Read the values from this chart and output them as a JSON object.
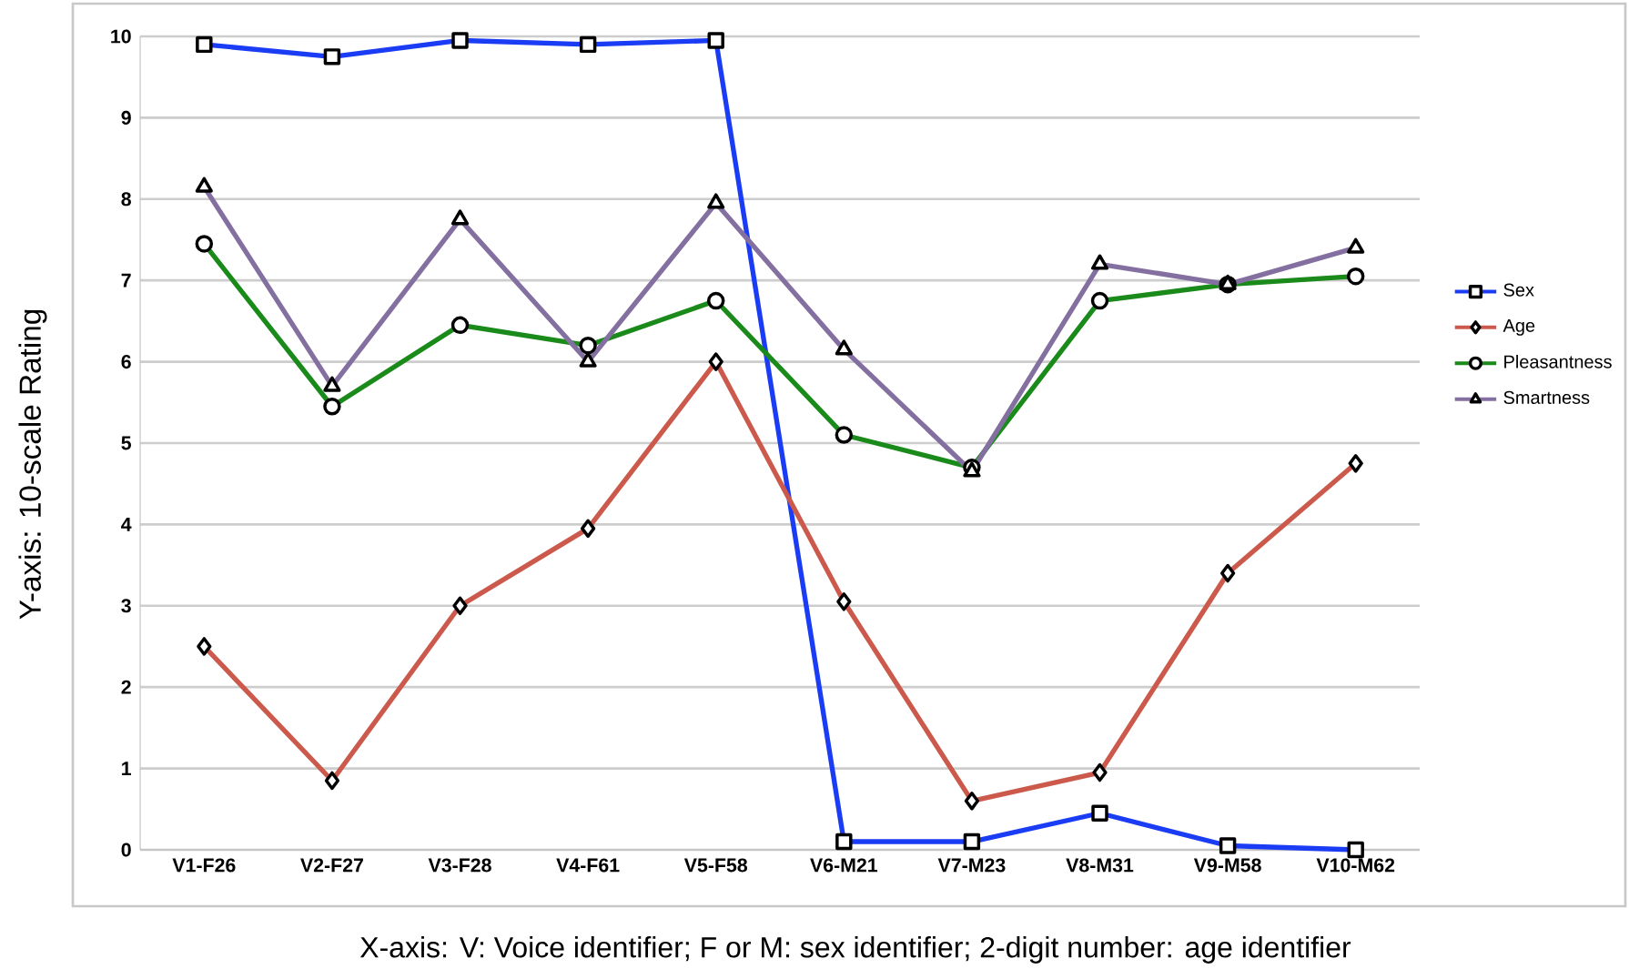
{
  "chart_data": {
    "type": "line",
    "xlabel": "X-axis:  V: Voice identifier; F or M: sex identifier; 2-digit number: age identifier",
    "ylabel": "Y-axis: 10-scale Rating",
    "categories": [
      "V1-F26",
      "V2-F27",
      "V3-F28",
      "V4-F61",
      "V5-F58",
      "V6-M21",
      "V7-M23",
      "V8-M31",
      "V9-M58",
      "V10-M62"
    ],
    "series": [
      {
        "name": "Sex",
        "color": "#1a3cf5",
        "marker": "square",
        "values": [
          9.9,
          9.75,
          9.95,
          9.9,
          9.95,
          0.1,
          0.1,
          0.45,
          0.05,
          0.0
        ]
      },
      {
        "name": "Age",
        "color": "#cc5a4c",
        "marker": "diamond",
        "values": [
          2.5,
          0.85,
          3.0,
          3.95,
          6.0,
          3.05,
          0.6,
          0.95,
          3.4,
          4.75
        ]
      },
      {
        "name": "Pleasantness",
        "color": "#1a8a1a",
        "marker": "circle",
        "values": [
          7.45,
          5.45,
          6.45,
          6.2,
          6.75,
          5.1,
          4.7,
          6.75,
          6.95,
          7.05
        ]
      },
      {
        "name": "Smartness",
        "color": "#8470a0",
        "marker": "triangle",
        "values": [
          8.15,
          5.7,
          7.75,
          6.0,
          7.95,
          6.15,
          4.65,
          7.2,
          6.95,
          7.4
        ]
      }
    ],
    "ylim": [
      0,
      10
    ],
    "yticks": [
      0,
      1,
      2,
      3,
      4,
      5,
      6,
      7,
      8,
      9,
      10
    ],
    "grid": "y",
    "legend": "right",
    "line_style": "solid"
  }
}
